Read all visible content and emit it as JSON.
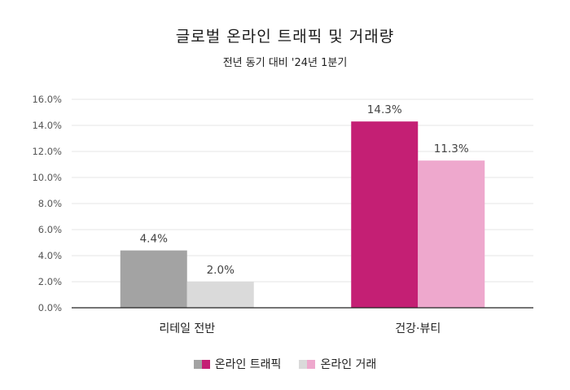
{
  "chart_data": {
    "type": "bar",
    "title": "글로벌 온라인 트래픽 및 거래량",
    "subtitle": "전년 동기 대비 '24년 1분기",
    "categories": [
      "리테일 전반",
      "건강·뷰티"
    ],
    "series": [
      {
        "name": "온라인 트래픽",
        "values": [
          4.4,
          14.3
        ],
        "colors": [
          "#a3a3a3",
          "#c41f74"
        ]
      },
      {
        "name": "온라인 거래",
        "values": [
          2.0,
          11.3
        ],
        "colors": [
          "#dadada",
          "#eea8cd"
        ]
      }
    ],
    "data_labels": [
      [
        "4.4%",
        "14.3%"
      ],
      [
        "2.0%",
        "11.3%"
      ]
    ],
    "y_ticks": [
      "0.0%",
      "2.0%",
      "4.0%",
      "6.0%",
      "8.0%",
      "10.0%",
      "12.0%",
      "14.0%",
      "16.0%"
    ],
    "ylim": [
      0,
      16
    ],
    "grid": true,
    "legend_position": "bottom"
  }
}
